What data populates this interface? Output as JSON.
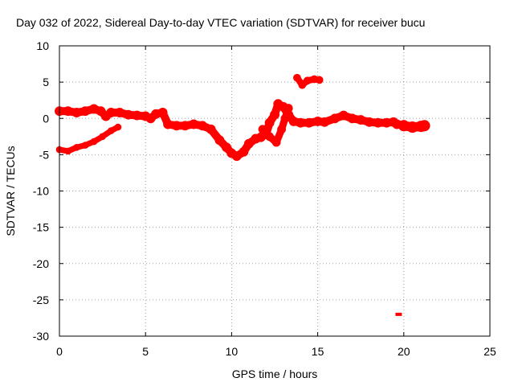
{
  "chart_data": {
    "type": "scatter",
    "title": "Day 032 of 2022, Sidereal Day-to-day VTEC variation (SDTVAR) for receiver bucu",
    "xlabel": "GPS time / hours",
    "ylabel": "SDTVAR / TECUs",
    "xlim": [
      0,
      25
    ],
    "ylim": [
      -30,
      10
    ],
    "xticks": [
      0,
      5,
      10,
      15,
      20,
      25
    ],
    "yticks": [
      -30,
      -25,
      -20,
      -15,
      -10,
      -5,
      0,
      5,
      10
    ],
    "grid": true,
    "color": "#ff0000",
    "series": [
      {
        "name": "main-trace",
        "band": 1.1,
        "points": [
          [
            0.0,
            1.0
          ],
          [
            0.5,
            1.0
          ],
          [
            1.0,
            0.8
          ],
          [
            1.5,
            1.0
          ],
          [
            2.0,
            1.3
          ],
          [
            2.4,
            1.0
          ],
          [
            2.7,
            0.3
          ],
          [
            3.0,
            0.8
          ],
          [
            3.5,
            0.8
          ],
          [
            4.0,
            0.5
          ],
          [
            4.5,
            0.4
          ],
          [
            5.0,
            0.3
          ],
          [
            5.3,
            0.0
          ],
          [
            5.6,
            0.6
          ],
          [
            6.0,
            0.8
          ],
          [
            6.3,
            -0.8
          ],
          [
            6.8,
            -1.0
          ],
          [
            7.3,
            -1.0
          ],
          [
            7.8,
            -0.8
          ],
          [
            8.3,
            -1.0
          ],
          [
            8.8,
            -1.5
          ],
          [
            9.3,
            -3.0
          ],
          [
            9.7,
            -4.0
          ],
          [
            10.0,
            -4.8
          ],
          [
            10.3,
            -5.2
          ],
          [
            10.7,
            -4.6
          ],
          [
            11.0,
            -3.5
          ],
          [
            11.4,
            -2.8
          ],
          [
            11.7,
            -2.6
          ],
          [
            12.0,
            -2.2
          ],
          [
            12.2,
            -0.6
          ],
          [
            12.5,
            0.5
          ],
          [
            12.7,
            2.0
          ],
          [
            13.0,
            1.6
          ],
          [
            13.3,
            0.5
          ],
          [
            13.6,
            -0.4
          ],
          [
            14.0,
            -0.6
          ],
          [
            14.5,
            -0.6
          ],
          [
            15.0,
            -0.4
          ],
          [
            15.4,
            -0.5
          ],
          [
            16.0,
            0.0
          ],
          [
            16.5,
            0.4
          ],
          [
            17.0,
            0.0
          ],
          [
            17.5,
            -0.2
          ],
          [
            18.0,
            -0.5
          ],
          [
            18.5,
            -0.6
          ],
          [
            19.0,
            -0.6
          ],
          [
            19.4,
            -0.5
          ],
          [
            19.6,
            -0.8
          ],
          [
            20.0,
            -0.9
          ]
        ]
      },
      {
        "name": "lower-arc",
        "band": 0.8,
        "points": [
          [
            0.0,
            -4.3
          ],
          [
            0.5,
            -4.5
          ],
          [
            1.0,
            -4.0
          ],
          [
            1.5,
            -3.7
          ],
          [
            2.0,
            -3.2
          ],
          [
            2.5,
            -2.5
          ],
          [
            3.0,
            -1.7
          ],
          [
            3.4,
            -1.2
          ]
        ]
      },
      {
        "name": "mid-drop",
        "band": 1.0,
        "points": [
          [
            11.8,
            -1.5
          ],
          [
            12.2,
            -2.5
          ],
          [
            12.6,
            -3.3
          ],
          [
            12.9,
            -1.5
          ],
          [
            13.1,
            0.0
          ],
          [
            13.3,
            1.4
          ]
        ]
      },
      {
        "name": "upper-segment",
        "band": 0.9,
        "points": [
          [
            13.8,
            5.6
          ],
          [
            14.1,
            4.6
          ],
          [
            14.4,
            5.2
          ],
          [
            14.8,
            5.4
          ],
          [
            15.1,
            5.3
          ]
        ]
      },
      {
        "name": "end-segment",
        "band": 1.3,
        "points": [
          [
            20.0,
            -1.0
          ],
          [
            20.5,
            -1.2
          ],
          [
            21.0,
            -1.1
          ],
          [
            21.2,
            -1.0
          ]
        ]
      }
    ],
    "isolated_points": [
      {
        "x": 19.7,
        "y": -27.0
      }
    ]
  }
}
